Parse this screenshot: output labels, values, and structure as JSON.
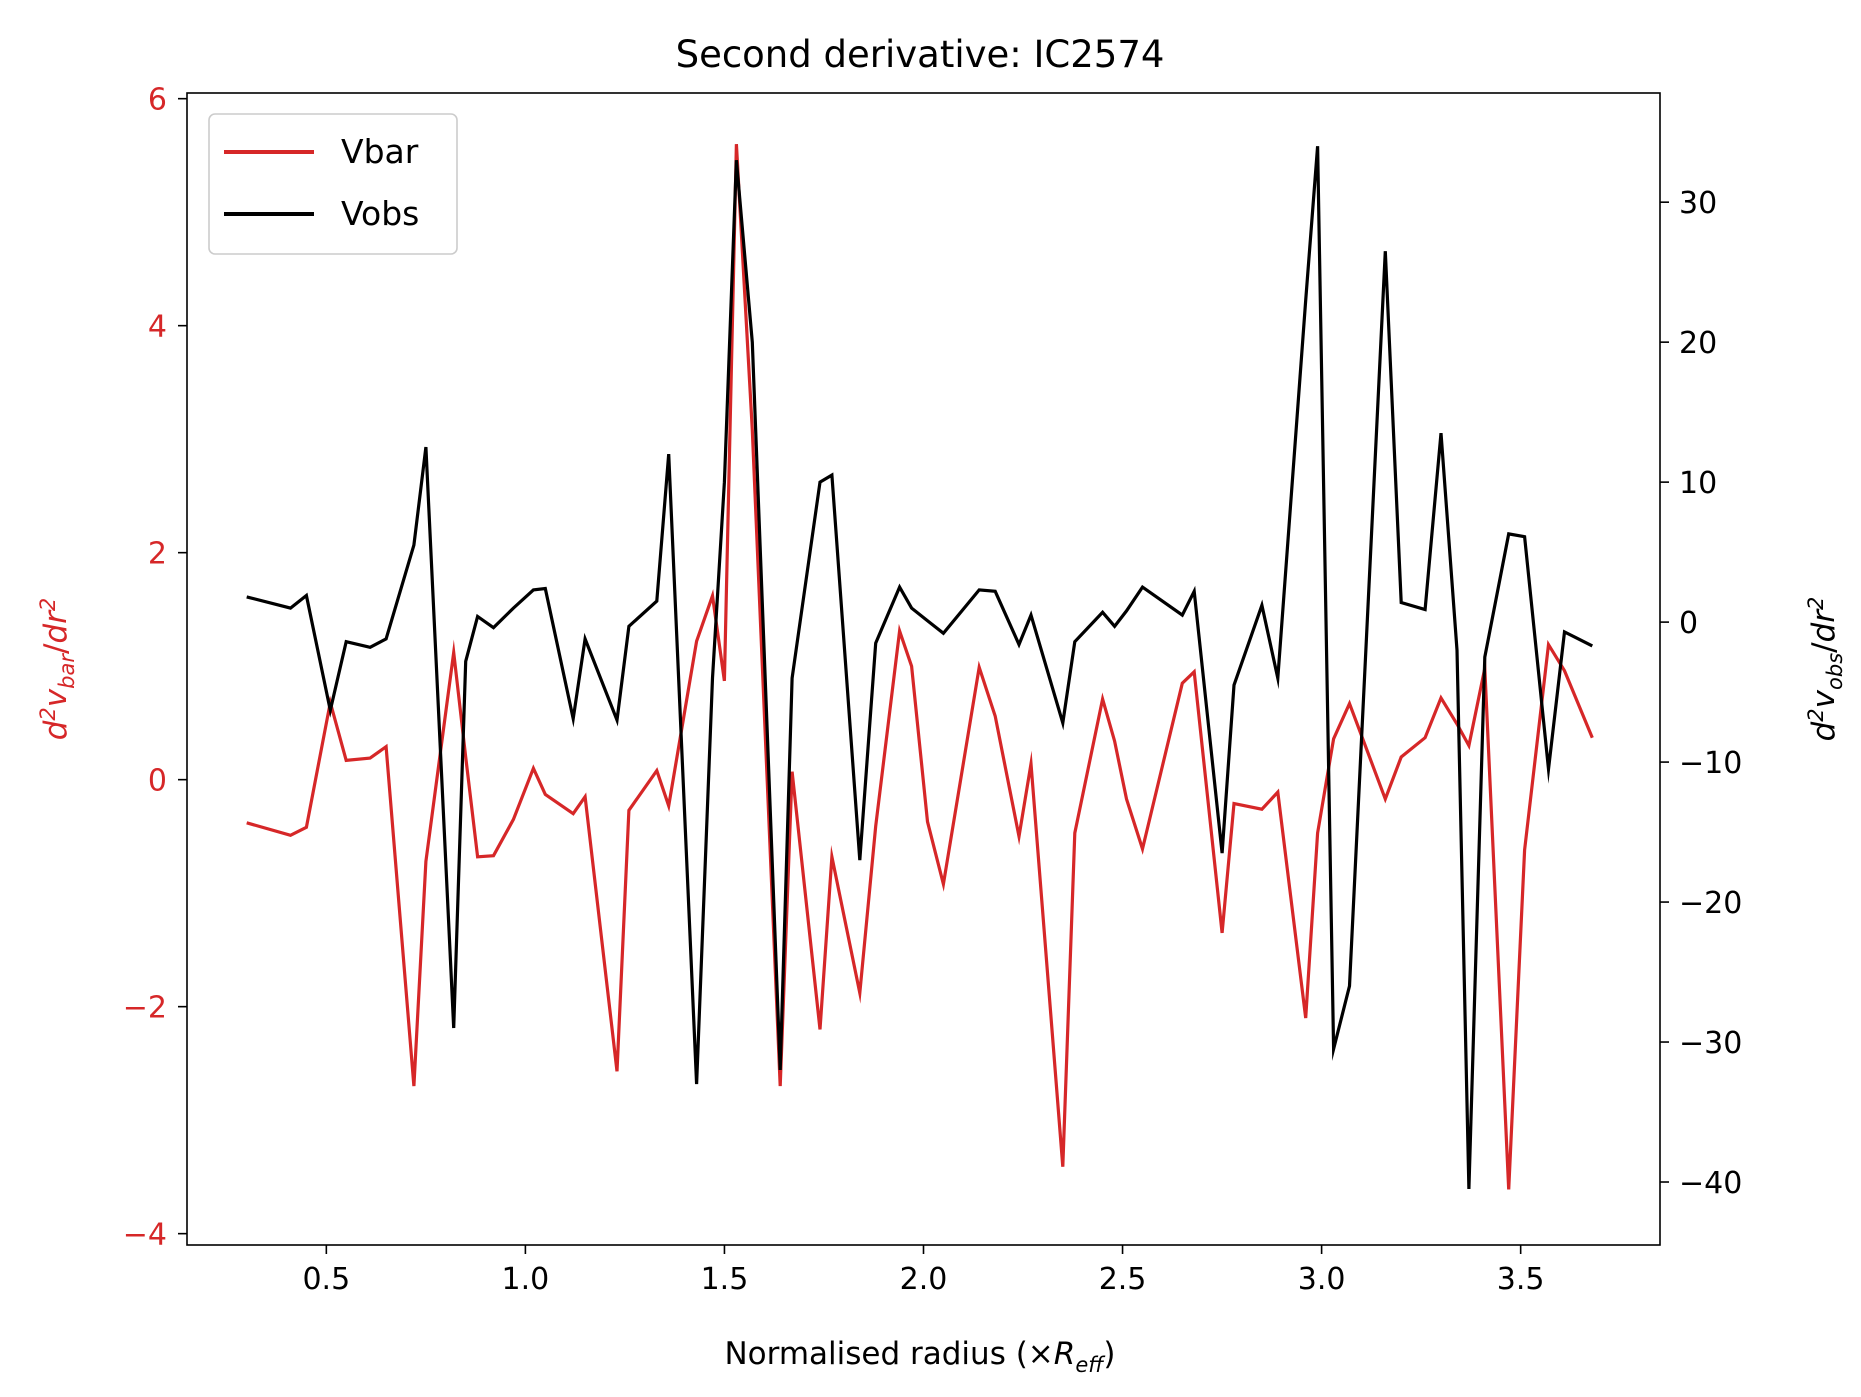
{
  "chart_data": {
    "type": "line",
    "title": "Second derivative: IC2574",
    "xlabel": {
      "main": "Normalised radius (×",
      "symbol": "R",
      "sub": "eff",
      "close": ")"
    },
    "ylabel_left": {
      "d": "d",
      "sup1": "2",
      "v": "v",
      "sub": "bar",
      "slash": "/",
      "dr": "dr",
      "sup2": "2"
    },
    "ylabel_right": {
      "d": "d",
      "sup1": "2",
      "v": "v",
      "sub": "obs",
      "slash": "/",
      "dr": "dr",
      "sup2": "2"
    },
    "xlim": [
      0.15,
      3.85
    ],
    "ylim_left": [
      -4.1,
      6.05
    ],
    "ylim_right": [
      -44.5,
      37.8
    ],
    "x_ticks": [
      0.5,
      1.0,
      1.5,
      2.0,
      2.5,
      3.0,
      3.5
    ],
    "x_tick_labels": [
      "0.5",
      "1.0",
      "1.5",
      "2.0",
      "2.5",
      "3.0",
      "3.5"
    ],
    "y_left_ticks": [
      -4,
      -2,
      0,
      2,
      4,
      6
    ],
    "y_left_tick_labels": [
      "−4",
      "−2",
      "0",
      "2",
      "4",
      "6"
    ],
    "y_right_ticks": [
      -40,
      -30,
      -20,
      -10,
      0,
      10,
      20,
      30
    ],
    "y_right_tick_labels": [
      "−40",
      "−30",
      "−20",
      "−10",
      "0",
      "10",
      "20",
      "30"
    ],
    "legend_position": "upper-left",
    "grid": false,
    "colors": {
      "vbar": "#d62728",
      "vobs": "#000000",
      "left_axis_text": "#d62728",
      "right_axis_text": "#000000"
    },
    "series": [
      {
        "name": "Vbar",
        "axis": "left",
        "x": [
          0.3,
          0.41,
          0.45,
          0.51,
          0.55,
          0.61,
          0.65,
          0.72,
          0.75,
          0.82,
          0.85,
          0.88,
          0.92,
          0.97,
          1.02,
          1.05,
          1.12,
          1.15,
          1.23,
          1.26,
          1.33,
          1.36,
          1.43,
          1.47,
          1.5,
          1.53,
          1.57,
          1.64,
          1.67,
          1.74,
          1.77,
          1.84,
          1.88,
          1.94,
          1.97,
          2.01,
          2.05,
          2.14,
          2.18,
          2.24,
          2.27,
          2.35,
          2.38,
          2.45,
          2.48,
          2.51,
          2.55,
          2.65,
          2.68,
          2.75,
          2.78,
          2.85,
          2.89,
          2.96,
          2.99,
          3.03,
          3.07,
          3.16,
          3.2,
          3.26,
          3.3,
          3.34,
          3.37,
          3.41,
          3.47,
          3.51,
          3.57,
          3.61,
          3.68
        ],
        "y": [
          -0.38,
          -0.49,
          -0.42,
          0.68,
          0.17,
          0.19,
          0.29,
          -2.7,
          -0.72,
          1.12,
          0.2,
          -0.68,
          -0.67,
          -0.35,
          0.1,
          -0.13,
          -0.3,
          -0.15,
          -2.57,
          -0.27,
          0.08,
          -0.23,
          1.22,
          1.62,
          0.87,
          5.6,
          3.08,
          -2.7,
          0.07,
          -2.2,
          -0.68,
          -1.88,
          -0.41,
          1.31,
          1.0,
          -0.37,
          -0.92,
          0.99,
          0.56,
          -0.5,
          0.14,
          -3.41,
          -0.47,
          0.71,
          0.34,
          -0.17,
          -0.61,
          0.85,
          0.95,
          -1.35,
          -0.21,
          -0.26,
          -0.11,
          -2.1,
          -0.47,
          0.36,
          0.67,
          -0.17,
          0.2,
          0.37,
          0.72,
          0.49,
          0.3,
          0.98,
          -3.61,
          -0.62,
          1.19,
          0.96,
          0.37
        ]
      },
      {
        "name": "Vobs",
        "axis": "right",
        "x": [
          0.3,
          0.41,
          0.45,
          0.51,
          0.55,
          0.61,
          0.65,
          0.72,
          0.75,
          0.82,
          0.85,
          0.88,
          0.92,
          0.97,
          1.02,
          1.05,
          1.12,
          1.15,
          1.23,
          1.26,
          1.33,
          1.36,
          1.43,
          1.47,
          1.5,
          1.53,
          1.57,
          1.64,
          1.67,
          1.74,
          1.77,
          1.84,
          1.88,
          1.94,
          1.97,
          2.01,
          2.05,
          2.14,
          2.18,
          2.24,
          2.27,
          2.35,
          2.38,
          2.45,
          2.48,
          2.51,
          2.55,
          2.65,
          2.68,
          2.75,
          2.78,
          2.85,
          2.89,
          2.96,
          2.99,
          3.03,
          3.07,
          3.16,
          3.2,
          3.26,
          3.3,
          3.34,
          3.37,
          3.41,
          3.47,
          3.51,
          3.57,
          3.61,
          3.68
        ],
        "y": [
          1.8,
          1.0,
          1.9,
          -6.3,
          -1.4,
          -1.8,
          -1.2,
          5.5,
          12.5,
          -29.0,
          -2.8,
          0.4,
          -0.4,
          1.0,
          2.3,
          2.4,
          -6.9,
          -1.2,
          -7.0,
          -0.3,
          1.5,
          12.0,
          -33.0,
          -4.0,
          10.0,
          33.0,
          20.0,
          -32.0,
          -4.0,
          10.0,
          10.5,
          -17.0,
          -1.5,
          2.5,
          1.0,
          0.1,
          -0.8,
          2.3,
          2.2,
          -1.6,
          0.5,
          -7.2,
          -1.4,
          0.7,
          -0.3,
          0.8,
          2.5,
          0.5,
          2.2,
          -16.5,
          -4.5,
          1.2,
          -4.0,
          23.0,
          34.0,
          -30.5,
          -26.0,
          26.5,
          1.4,
          0.9,
          13.5,
          -2.0,
          -40.5,
          -2.5,
          6.3,
          6.1,
          -10.5,
          -0.7,
          -1.7
        ]
      }
    ]
  }
}
